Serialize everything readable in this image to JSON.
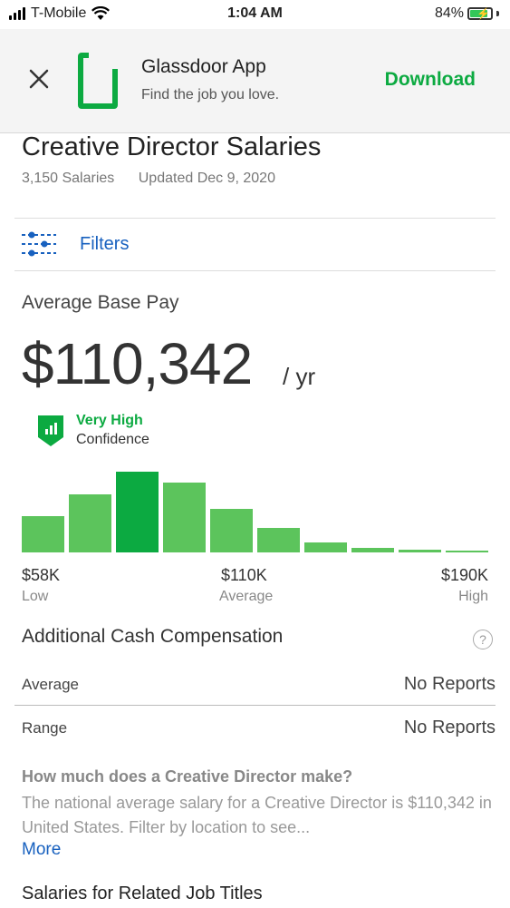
{
  "status_bar": {
    "carrier": "T-Mobile",
    "time": "1:04 AM",
    "battery": "84%"
  },
  "banner": {
    "app_name": "Glassdoor App",
    "tagline": "Find the job you love.",
    "download_label": "Download",
    "brand_color": "#0caa41"
  },
  "page": {
    "title": "Creative Director Salaries",
    "salaries_count": "3,150 Salaries",
    "updated": "Updated Dec 9, 2020",
    "filters_label": "Filters"
  },
  "pay": {
    "label": "Average Base Pay",
    "amount": "$110,342",
    "unit": "/ yr",
    "confidence_level": "Very High",
    "confidence_label": "Confidence"
  },
  "histogram": {
    "values": [
      40,
      64,
      89,
      77,
      48,
      27,
      11,
      5,
      3,
      1
    ],
    "highlight_index": 2,
    "color": "#5cc45c",
    "highlight_color": "#0caa41",
    "axis": [
      {
        "value": "$58K",
        "caption": "Low"
      },
      {
        "value": "$110K",
        "caption": "Average"
      },
      {
        "value": "$190K",
        "caption": "High"
      }
    ]
  },
  "additional": {
    "title": "Additional Cash Compensation",
    "help": "?",
    "rows": [
      {
        "label": "Average",
        "value": "No Reports"
      },
      {
        "label": "Range",
        "value": "No Reports"
      }
    ]
  },
  "faq": {
    "question": "How much does a Creative Director make?",
    "answer": "The national average salary for a Creative Director is $110,342 in United States. Filter by location to see...",
    "more": "More"
  },
  "related_title": "Salaries for Related Job Titles"
}
